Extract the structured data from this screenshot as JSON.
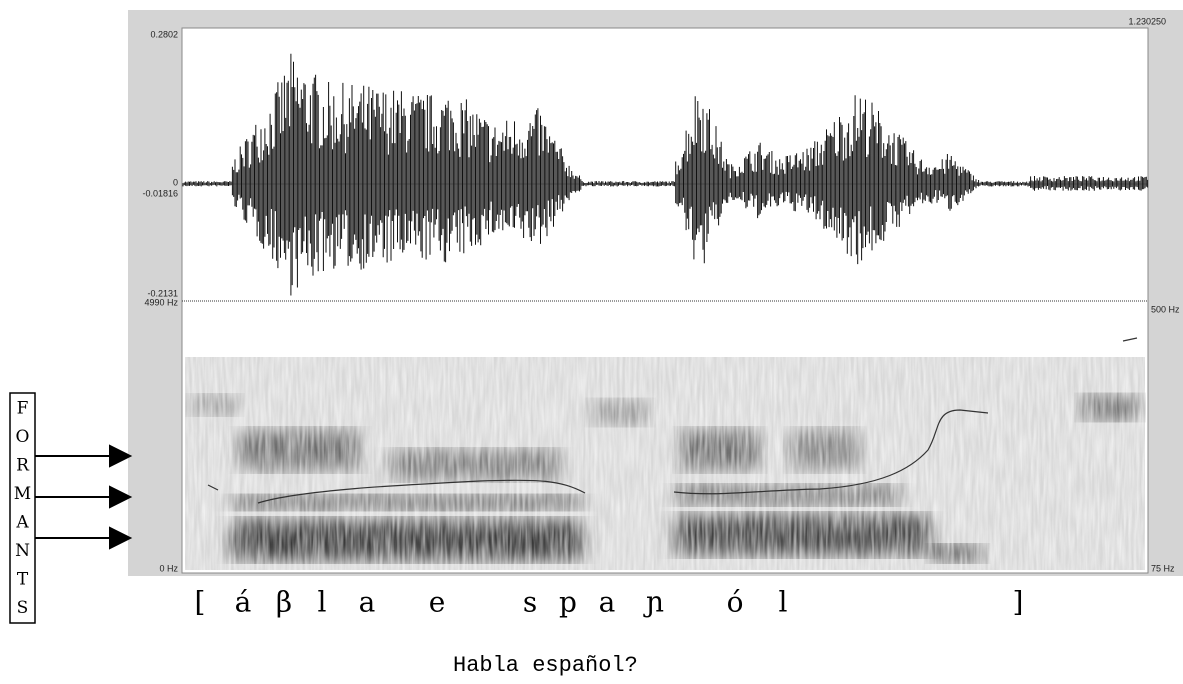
{
  "time_end": "1.230250",
  "waveform": {
    "max": "0.2802",
    "zero": "0",
    "cursor": "-0.01816",
    "min": "-0.2131"
  },
  "spectrogram": {
    "top": "4990 Hz",
    "bottom": "0 Hz"
  },
  "pitch": {
    "top": "500 Hz",
    "bottom": "75 Hz"
  },
  "side_label": [
    "F",
    "O",
    "R",
    "M",
    "A",
    "N",
    "T",
    "S"
  ],
  "transcription": [
    "[",
    "á",
    "β",
    "l",
    "a",
    "e",
    "s",
    "p",
    "a",
    "ɲ",
    "ó",
    "l",
    "]"
  ],
  "caption": "Habla español?"
}
